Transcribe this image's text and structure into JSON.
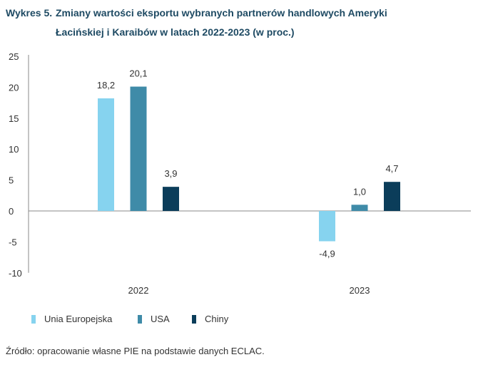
{
  "title_label": "Wykres 5.",
  "title_line1": "Zmiany wartości eksportu wybranych partnerów handlowych Ameryki",
  "title_line2": "Łacińskiej i Karaibów w latach 2022-2023 (w proc.)",
  "source": "Źródło: opracowanie własne PIE na podstawie danych ECLAC.",
  "chart_data": {
    "type": "bar",
    "categories": [
      "2022",
      "2023"
    ],
    "series": [
      {
        "name": "Unia Europejska",
        "values": [
          18.2,
          -4.9
        ],
        "labels": [
          "18,2",
          "-4,9"
        ],
        "color": "#86d3ef"
      },
      {
        "name": "USA",
        "values": [
          20.1,
          1.0
        ],
        "labels": [
          "20,1",
          "1,0"
        ],
        "color": "#3f8ba8"
      },
      {
        "name": "Chiny",
        "values": [
          3.9,
          4.7
        ],
        "labels": [
          "3,9",
          "4,7"
        ],
        "color": "#0b3d5a"
      }
    ],
    "ylim": [
      -10,
      25
    ],
    "yticks": [
      25,
      20,
      15,
      10,
      5,
      0,
      -5,
      -10
    ],
    "grid": false,
    "legend": "bottom-left"
  }
}
